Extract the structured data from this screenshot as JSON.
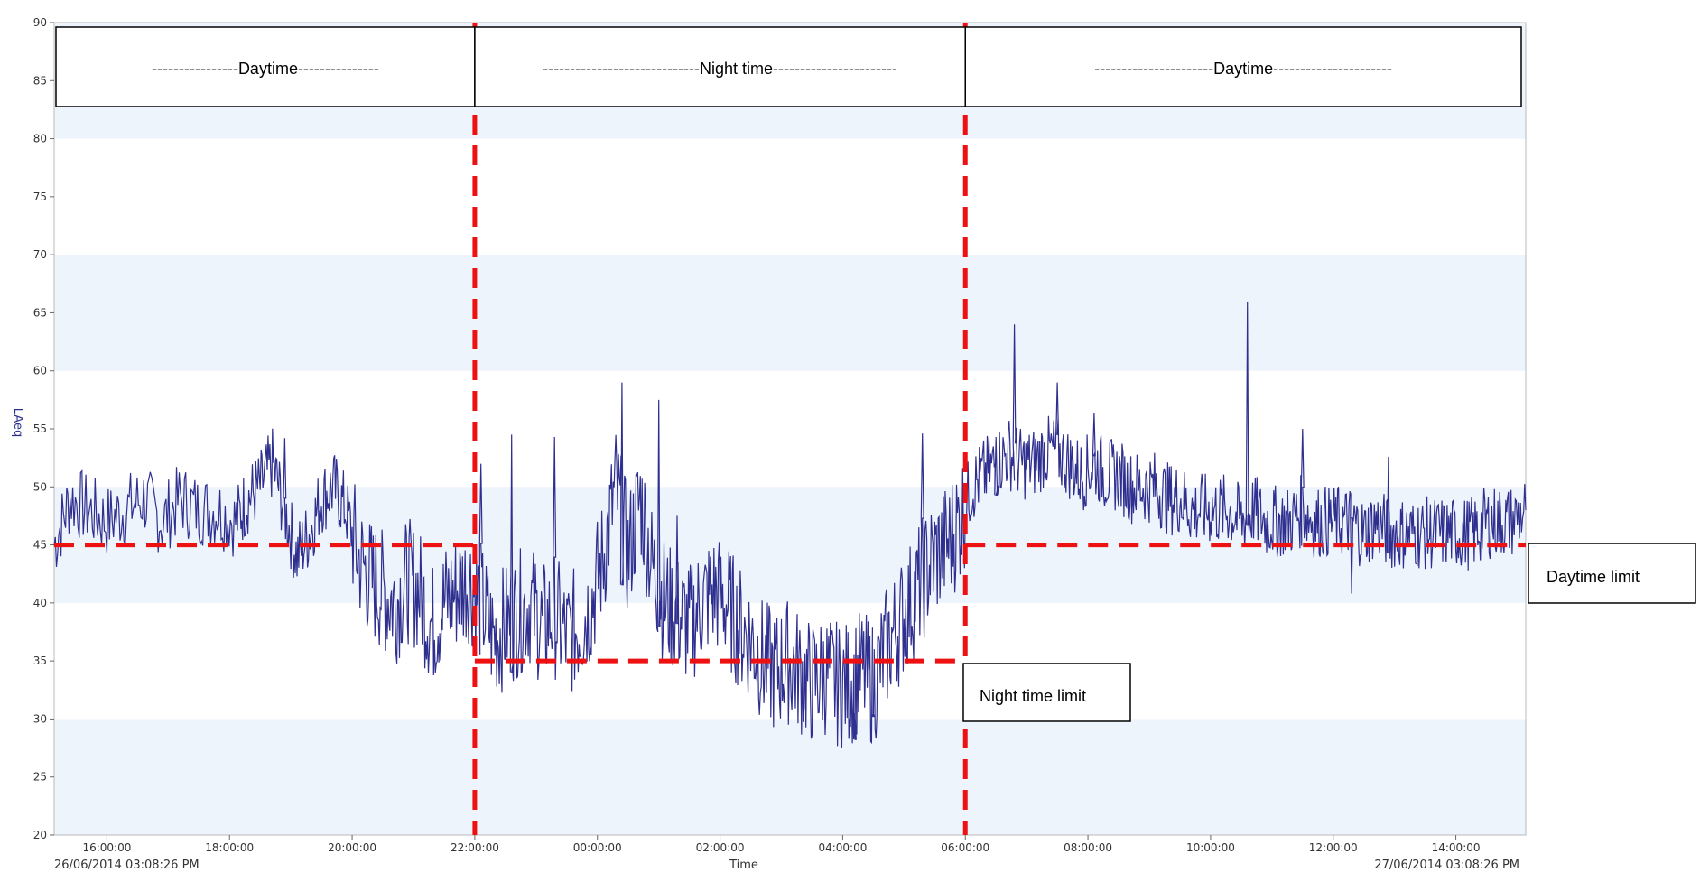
{
  "chart_data": {
    "type": "line",
    "xlabel": "Time",
    "ylabel": "LAeq",
    "start_label": "26/06/2014 03:08:26 PM",
    "end_label": "27/06/2014 03:08:26 PM",
    "ylim": [
      20,
      90
    ],
    "xlim_hours": [
      15.14,
      39.14
    ],
    "y_ticks": [
      20,
      25,
      30,
      35,
      40,
      45,
      50,
      55,
      60,
      65,
      70,
      75,
      80,
      85,
      90
    ],
    "x_ticks": [
      {
        "hour": 16,
        "label": "16:00:00"
      },
      {
        "hour": 18,
        "label": "18:00:00"
      },
      {
        "hour": 20,
        "label": "20:00:00"
      },
      {
        "hour": 22,
        "label": "22:00:00"
      },
      {
        "hour": 24,
        "label": "00:00:00"
      },
      {
        "hour": 26,
        "label": "02:00:00"
      },
      {
        "hour": 28,
        "label": "04:00:00"
      },
      {
        "hour": 30,
        "label": "06:00:00"
      },
      {
        "hour": 32,
        "label": "08:00:00"
      },
      {
        "hour": 34,
        "label": "10:00:00"
      },
      {
        "hour": 36,
        "label": "12:00:00"
      },
      {
        "hour": 38,
        "label": "14:00:00"
      }
    ],
    "band_color": "#eef4fc",
    "series_color": "#2e2f8f",
    "limit_color": "#ee1111",
    "series": [
      {
        "points": [
          [
            15.14,
            45
          ],
          [
            15.4,
            49
          ],
          [
            15.7,
            48
          ],
          [
            16.0,
            47
          ],
          [
            16.3,
            48
          ],
          [
            16.6,
            49
          ],
          [
            16.9,
            47
          ],
          [
            17.2,
            49
          ],
          [
            17.5,
            48
          ],
          [
            17.8,
            48
          ],
          [
            18.1,
            47
          ],
          [
            18.3,
            49
          ],
          [
            18.5,
            50
          ],
          [
            18.7,
            52
          ],
          [
            18.9,
            48
          ],
          [
            19.1,
            44
          ],
          [
            19.3,
            46
          ],
          [
            19.5,
            49
          ],
          [
            19.7,
            50
          ],
          [
            19.9,
            48
          ],
          [
            20.1,
            44
          ],
          [
            20.3,
            42
          ],
          [
            20.5,
            41
          ],
          [
            20.7,
            40
          ],
          [
            20.9,
            42
          ],
          [
            21.1,
            41
          ],
          [
            21.3,
            38
          ],
          [
            21.5,
            40
          ],
          [
            21.7,
            41
          ],
          [
            21.9,
            42
          ],
          [
            22.1,
            40
          ],
          [
            22.3,
            37
          ],
          [
            22.5,
            38
          ],
          [
            22.7,
            39
          ],
          [
            22.9,
            40
          ],
          [
            23.1,
            38
          ],
          [
            23.3,
            39
          ],
          [
            23.5,
            37
          ],
          [
            23.7,
            38
          ],
          [
            23.9,
            40
          ],
          [
            24.1,
            44
          ],
          [
            24.3,
            50
          ],
          [
            24.5,
            44
          ],
          [
            24.7,
            49
          ],
          [
            24.9,
            43
          ],
          [
            25.1,
            40
          ],
          [
            25.3,
            39
          ],
          [
            25.5,
            38
          ],
          [
            25.7,
            40
          ],
          [
            25.9,
            41
          ],
          [
            26.1,
            40
          ],
          [
            26.3,
            38
          ],
          [
            26.5,
            37
          ],
          [
            26.7,
            35
          ],
          [
            26.9,
            34
          ],
          [
            27.1,
            35
          ],
          [
            27.3,
            34
          ],
          [
            27.5,
            33
          ],
          [
            27.7,
            34
          ],
          [
            27.9,
            33
          ],
          [
            28.1,
            33
          ],
          [
            28.3,
            34
          ],
          [
            28.5,
            33
          ],
          [
            28.7,
            36
          ],
          [
            28.9,
            38
          ],
          [
            29.1,
            40
          ],
          [
            29.3,
            42
          ],
          [
            29.5,
            44
          ],
          [
            29.7,
            45
          ],
          [
            29.9,
            47
          ],
          [
            30.1,
            50
          ],
          [
            30.3,
            51
          ],
          [
            30.5,
            52
          ],
          [
            30.7,
            53
          ],
          [
            30.9,
            52
          ],
          [
            31.1,
            52
          ],
          [
            31.3,
            53
          ],
          [
            31.5,
            53
          ],
          [
            31.7,
            52
          ],
          [
            31.9,
            51
          ],
          [
            32.1,
            52
          ],
          [
            32.3,
            51
          ],
          [
            32.5,
            51
          ],
          [
            32.7,
            50
          ],
          [
            32.9,
            50
          ],
          [
            33.1,
            50
          ],
          [
            33.3,
            49
          ],
          [
            33.5,
            49
          ],
          [
            33.7,
            48
          ],
          [
            33.9,
            48
          ],
          [
            34.1,
            48
          ],
          [
            34.3,
            48
          ],
          [
            34.5,
            47
          ],
          [
            34.7,
            48
          ],
          [
            34.9,
            47
          ],
          [
            35.1,
            47
          ],
          [
            35.3,
            47
          ],
          [
            35.5,
            48
          ],
          [
            35.7,
            47
          ],
          [
            35.9,
            47
          ],
          [
            36.1,
            47
          ],
          [
            36.3,
            47
          ],
          [
            36.5,
            46
          ],
          [
            36.7,
            47
          ],
          [
            36.9,
            46
          ],
          [
            37.1,
            46
          ],
          [
            37.3,
            46
          ],
          [
            37.5,
            46
          ],
          [
            37.7,
            46
          ],
          [
            37.9,
            46
          ],
          [
            38.1,
            46
          ],
          [
            38.3,
            46
          ],
          [
            38.5,
            47
          ],
          [
            38.7,
            47
          ],
          [
            38.9,
            47
          ],
          [
            39.14,
            48
          ]
        ]
      }
    ],
    "spikes": [
      [
        18.9,
        54.2
      ],
      [
        22.1,
        52.0
      ],
      [
        22.6,
        54.5
      ],
      [
        23.3,
        54.3
      ],
      [
        24.4,
        59.0
      ],
      [
        25.0,
        57.5
      ],
      [
        25.3,
        47.5
      ],
      [
        28.2,
        30.5
      ],
      [
        28.5,
        30.4
      ],
      [
        29.3,
        54.6
      ],
      [
        30.5,
        54.3
      ],
      [
        30.8,
        64.0
      ],
      [
        31.5,
        59.0
      ],
      [
        32.1,
        56.4
      ],
      [
        34.6,
        65.9
      ],
      [
        35.5,
        55.0
      ],
      [
        36.3,
        40.8
      ],
      [
        36.9,
        52.6
      ]
    ],
    "limits": [
      {
        "from": 15.14,
        "to": 22.0,
        "value": 45
      },
      {
        "from": 22.0,
        "to": 30.0,
        "value": 35
      },
      {
        "from": 30.0,
        "to": 39.14,
        "value": 45
      }
    ],
    "period_boundaries_hours": [
      22.0,
      30.0
    ],
    "period_labels": [
      "----------------Daytime---------------",
      "-----------------------------Night time-----------------------",
      "----------------------Daytime----------------------"
    ],
    "annotations": {
      "daytime_limit": "Daytime limit",
      "night_limit": "Night time limit"
    }
  }
}
